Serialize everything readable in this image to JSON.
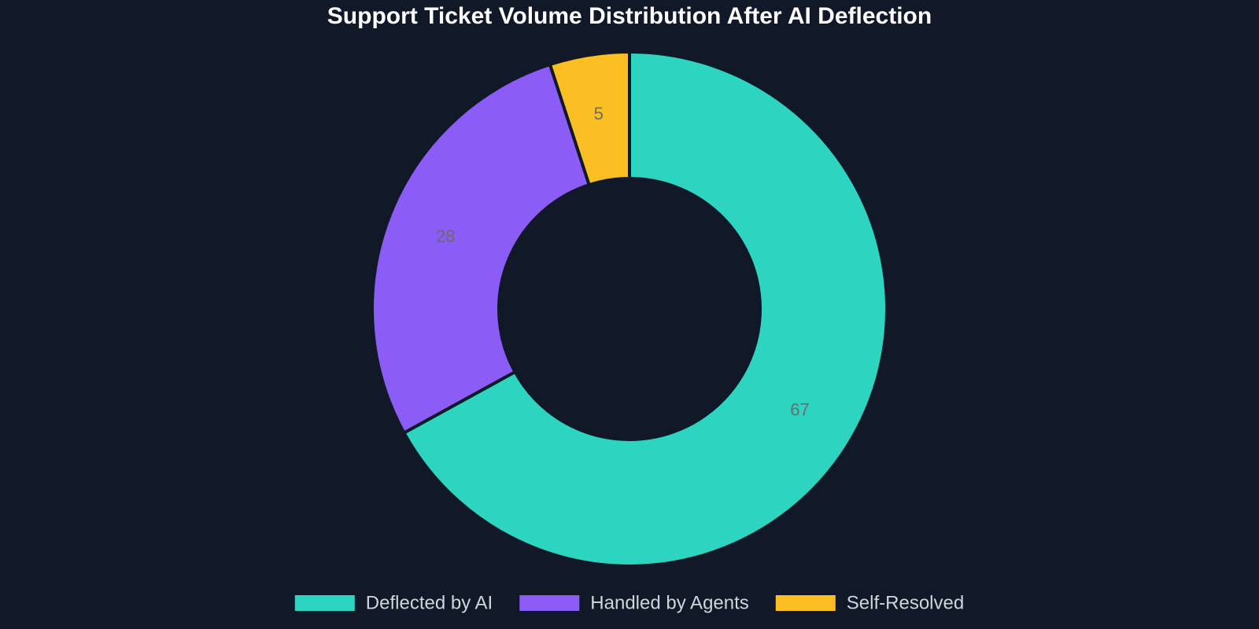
{
  "chart_data": {
    "type": "pie",
    "donut": true,
    "title": "Support Ticket Volume Distribution After AI Deflection",
    "slices": [
      {
        "label": "Deflected by AI",
        "value": 67,
        "display": "67",
        "color": "#2dd4bf"
      },
      {
        "label": "Handled by Agents",
        "value": 28,
        "display": "28",
        "color": "#8b5cf6"
      },
      {
        "label": "Self-Resolved",
        "value": 5,
        "display": "5",
        "color": "#fbbf24"
      }
    ],
    "start_angle": "12 o'clock",
    "direction": "clockwise",
    "legend_position": "bottom"
  },
  "colors": {
    "background": "#111827",
    "title": "#ffffff",
    "data_label": "#6b6b6b",
    "legend_text": "#d1d5db",
    "slice_border": "#111827"
  }
}
